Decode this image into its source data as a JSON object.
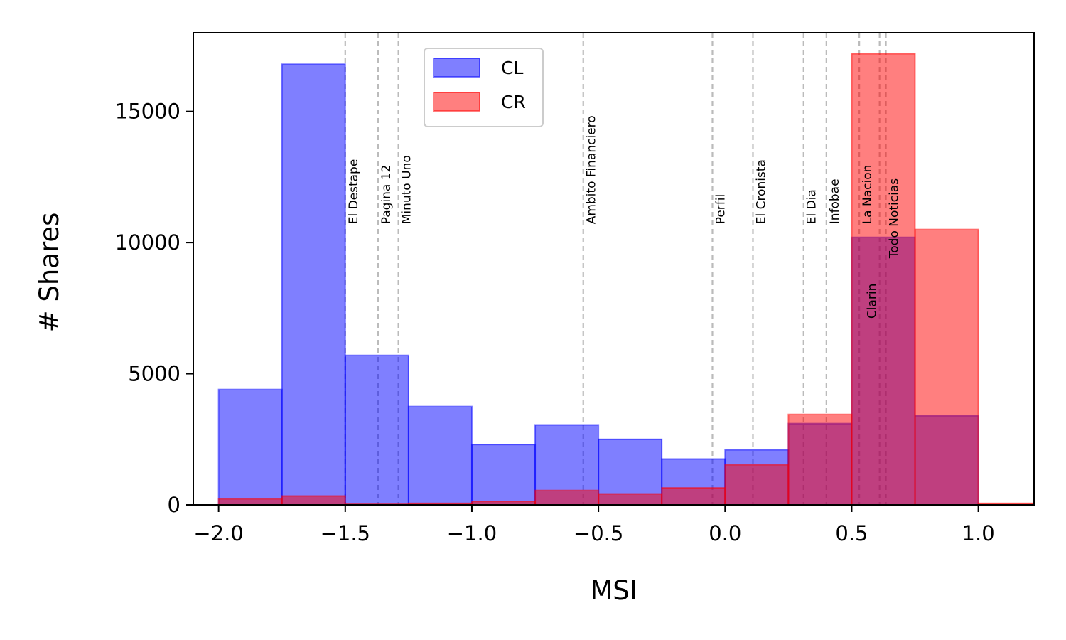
{
  "chart_data": {
    "type": "bar",
    "subtype": "overlapping-histogram",
    "title": "",
    "xlabel": "MSI",
    "ylabel": "# Shares",
    "xlim": [
      -2.1,
      1.22
    ],
    "ylim": [
      0,
      18000
    ],
    "bin_width": 0.25,
    "x_ticks": [
      -2.0,
      -1.5,
      -1.0,
      -0.5,
      0.0,
      0.5,
      1.0
    ],
    "x_tick_labels": [
      "−2.0",
      "−1.5",
      "−1.0",
      "−0.5",
      "0.0",
      "0.5",
      "1.0"
    ],
    "y_ticks": [
      0,
      5000,
      10000,
      15000
    ],
    "y_tick_labels": [
      "0",
      "5000",
      "10000",
      "15000"
    ],
    "grid": false,
    "legend_position": "top-center",
    "series": [
      {
        "name": "CL",
        "color": "#0000ff",
        "bins": [
          {
            "x0": -2.0,
            "x1": -1.75,
            "value": 4400
          },
          {
            "x0": -1.75,
            "x1": -1.5,
            "value": 16800
          },
          {
            "x0": -1.5,
            "x1": -1.25,
            "value": 5700
          },
          {
            "x0": -1.25,
            "x1": -1.0,
            "value": 3750
          },
          {
            "x0": -1.0,
            "x1": -0.75,
            "value": 2300
          },
          {
            "x0": -0.75,
            "x1": -0.5,
            "value": 3050
          },
          {
            "x0": -0.5,
            "x1": -0.25,
            "value": 2500
          },
          {
            "x0": -0.25,
            "x1": 0.0,
            "value": 1750
          },
          {
            "x0": 0.0,
            "x1": 0.25,
            "value": 2100
          },
          {
            "x0": 0.25,
            "x1": 0.5,
            "value": 3100
          },
          {
            "x0": 0.5,
            "x1": 0.75,
            "value": 10200
          },
          {
            "x0": 0.75,
            "x1": 1.0,
            "value": 3400
          }
        ]
      },
      {
        "name": "CR",
        "color": "#ff0000",
        "bins": [
          {
            "x0": -2.0,
            "x1": -1.75,
            "value": 230
          },
          {
            "x0": -1.75,
            "x1": -1.5,
            "value": 340
          },
          {
            "x0": -1.5,
            "x1": -1.25,
            "value": 30
          },
          {
            "x0": -1.25,
            "x1": -1.0,
            "value": 60
          },
          {
            "x0": -1.0,
            "x1": -0.75,
            "value": 130
          },
          {
            "x0": -0.75,
            "x1": -0.5,
            "value": 550
          },
          {
            "x0": -0.5,
            "x1": -0.25,
            "value": 420
          },
          {
            "x0": -0.25,
            "x1": 0.0,
            "value": 650
          },
          {
            "x0": 0.0,
            "x1": 0.25,
            "value": 1530
          },
          {
            "x0": 0.25,
            "x1": 0.5,
            "value": 3450
          },
          {
            "x0": 0.5,
            "x1": 0.75,
            "value": 17200
          },
          {
            "x0": 0.75,
            "x1": 1.0,
            "value": 10500
          },
          {
            "x0": 1.0,
            "x1": 1.25,
            "value": 60
          }
        ]
      }
    ],
    "reference_lines": [
      {
        "label": "El Destape",
        "x": -1.5,
        "label_y": 10700,
        "side": "right"
      },
      {
        "label": "Pagina 12",
        "x": -1.37,
        "label_y": 10700,
        "side": "right"
      },
      {
        "label": "Minuto Uno",
        "x": -1.29,
        "label_y": 10700,
        "side": "right"
      },
      {
        "label": "Ambito Financiero",
        "x": -0.56,
        "label_y": 10700,
        "side": "right"
      },
      {
        "label": "Perfil",
        "x": -0.05,
        "label_y": 10700,
        "side": "right"
      },
      {
        "label": "El Cronista",
        "x": 0.11,
        "label_y": 10700,
        "side": "right"
      },
      {
        "label": "El Dia",
        "x": 0.31,
        "label_y": 10700,
        "side": "right"
      },
      {
        "label": "Infobae",
        "x": 0.4,
        "label_y": 10700,
        "side": "right"
      },
      {
        "label": "La Nacion",
        "x": 0.53,
        "label_y": 10700,
        "side": "right"
      },
      {
        "label": "Clarin",
        "x": 0.61,
        "label_y": 7100,
        "side": "left"
      },
      {
        "label": "Todo Noticias",
        "x": 0.635,
        "label_y": 9400,
        "side": "right"
      }
    ]
  }
}
